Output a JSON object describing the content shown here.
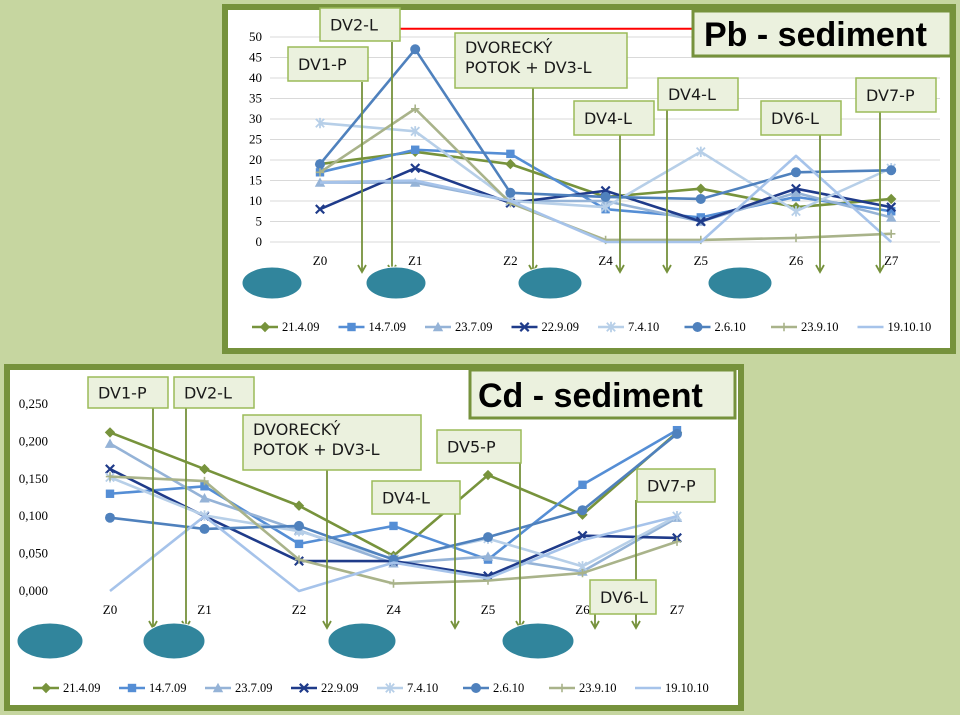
{
  "colors": {
    "background": "#c6d6a0",
    "panel_border": "#76923c",
    "callout_fill": "#ebf1de",
    "callout_border": "#9bbb59",
    "oval_fill": "#31859c",
    "pointer_line": "#76923c",
    "limit_line": "#ff0000"
  },
  "chart_data": [
    {
      "type": "line",
      "title": "Pb - sediment",
      "categories": [
        "Z0",
        "Z1",
        "Z2",
        "Z4",
        "Z5",
        "Z6",
        "Z7"
      ],
      "ylim": [
        0,
        50
      ],
      "yticks": [
        "0",
        "5",
        "10",
        "15",
        "20",
        "25",
        "30",
        "35",
        "40",
        "45",
        "50"
      ],
      "grid": true,
      "legend_position": "bottom",
      "limit_line": 52,
      "series": [
        {
          "name": "21.4.09",
          "color": "#77933c",
          "marker": "diamond",
          "values": [
            19,
            22,
            19,
            11,
            13,
            8.5,
            10.5
          ]
        },
        {
          "name": "14.7.09",
          "color": "#558ed5",
          "marker": "square",
          "values": [
            17,
            22.5,
            21.5,
            8,
            6,
            11,
            7.5
          ]
        },
        {
          "name": "23.7.09",
          "color": "#95b3d7",
          "marker": "triangle",
          "values": [
            14.5,
            14.5,
            10,
            10,
            5,
            12,
            6
          ]
        },
        {
          "name": "22.9.09",
          "color": "#1f3b8a",
          "marker": "x",
          "values": [
            8,
            18,
            9.5,
            12.5,
            5,
            13,
            8.5
          ]
        },
        {
          "name": "7.4.10",
          "color": "#b7cfe8",
          "marker": "star",
          "values": [
            29,
            27,
            10,
            8.5,
            22,
            7.5,
            18
          ]
        },
        {
          "name": "2.6.10",
          "color": "#4f81bd",
          "marker": "circle",
          "values": [
            19,
            47,
            12,
            11,
            10.5,
            17,
            17.5
          ]
        },
        {
          "name": "23.9.10",
          "color": "#a9b38a",
          "marker": "plus",
          "values": [
            17,
            32.5,
            9.5,
            0.5,
            0.5,
            1,
            2
          ]
        },
        {
          "name": "19.10.10",
          "color": "#a6c3ea",
          "marker": "none",
          "values": [
            14.5,
            15,
            10,
            0,
            0,
            21,
            0
          ]
        }
      ],
      "callouts": [
        "DV1-P",
        "DV2-L",
        "DVORECKÝ\nPOTOK + DV3-L",
        "DV4-L",
        "DV4-L",
        "DV6-L",
        "DV7-P"
      ]
    },
    {
      "type": "line",
      "title": "Cd - sediment",
      "categories": [
        "Z0",
        "Z1",
        "Z2",
        "Z4",
        "Z5",
        "Z6",
        "Z7"
      ],
      "ylim": [
        0,
        0.25
      ],
      "yticks": [
        "0,000",
        "0,050",
        "0,100",
        "0,150",
        "0,200",
        "0,250"
      ],
      "grid": false,
      "legend_position": "bottom",
      "series": [
        {
          "name": "21.4.09",
          "color": "#77933c",
          "marker": "diamond",
          "values": [
            0.212,
            0.163,
            0.114,
            0.047,
            0.155,
            0.102,
            0.212
          ]
        },
        {
          "name": "14.7.09",
          "color": "#558ed5",
          "marker": "square",
          "values": [
            0.13,
            0.14,
            0.063,
            0.087,
            0.042,
            0.142,
            0.215
          ]
        },
        {
          "name": "23.7.09",
          "color": "#95b3d7",
          "marker": "triangle",
          "values": [
            0.197,
            0.124,
            0.081,
            0.037,
            0.046,
            0.026,
            0.098
          ]
        },
        {
          "name": "22.9.09",
          "color": "#1f3b8a",
          "marker": "x",
          "values": [
            0.163,
            0.1,
            0.04,
            0.04,
            0.02,
            0.074,
            0.071
          ]
        },
        {
          "name": "7.4.10",
          "color": "#b7cfe8",
          "marker": "star",
          "values": [
            0.152,
            0.101,
            0.08,
            0.043,
            0.07,
            0.033,
            0.1
          ]
        },
        {
          "name": "2.6.10",
          "color": "#4f81bd",
          "marker": "circle",
          "values": [
            0.098,
            0.083,
            0.087,
            0.042,
            0.072,
            0.108,
            0.21
          ]
        },
        {
          "name": "23.9.10",
          "color": "#a9b38a",
          "marker": "plus",
          "values": [
            0.153,
            0.147,
            0.042,
            0.01,
            0.014,
            0.024,
            0.066
          ]
        },
        {
          "name": "19.10.10",
          "color": "#a6c3ea",
          "marker": "none",
          "values": [
            0,
            0.1,
            0,
            0.038,
            0.017,
            0.068,
            0.1
          ]
        }
      ],
      "callouts": [
        "DV1-P",
        "DV2-L",
        "DVORECKÝ\nPOTOK + DV3-L",
        "DV5-P",
        "DV4-L",
        "DV7-P",
        "DV6-L"
      ]
    }
  ]
}
